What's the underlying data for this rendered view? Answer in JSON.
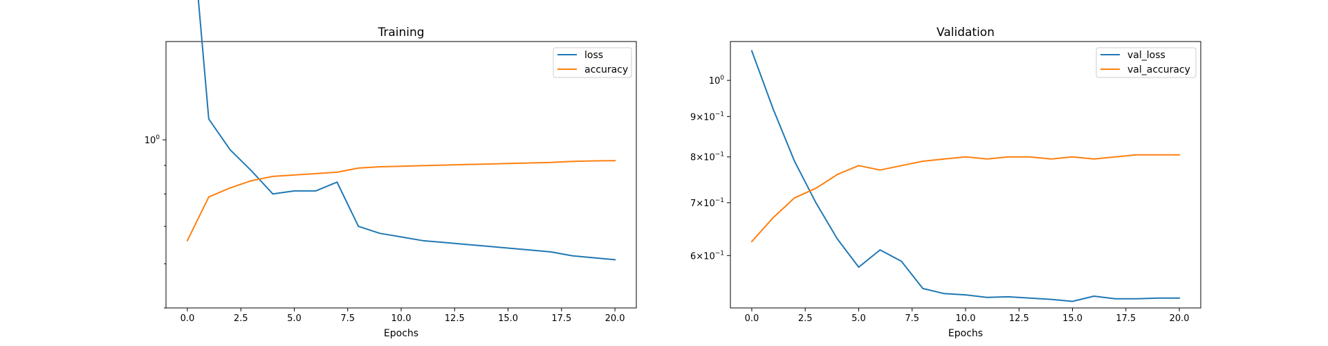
{
  "colors": {
    "series1": "#1f77b4",
    "series2": "#ff7f0e"
  },
  "chart_data": [
    {
      "type": "line",
      "title": "Training",
      "xlabel": "Epochs",
      "ylabel": "",
      "yscale": "log",
      "xlim": [
        -1.0,
        21.0
      ],
      "ylim": [
        0.5,
        1.5
      ],
      "xticks": [
        0.0,
        2.5,
        5.0,
        7.5,
        10.0,
        12.5,
        15.0,
        17.5,
        20.0
      ],
      "xtick_labels": [
        "0.0",
        "2.5",
        "5.0",
        "7.5",
        "10.0",
        "12.5",
        "15.0",
        "17.5",
        "20.0"
      ],
      "yticks_major": [
        {
          "value": 1.0,
          "base": "10",
          "exp": "0"
        }
      ],
      "yticks_minor": [
        0.5,
        0.6,
        0.7,
        0.8,
        0.9,
        2.0,
        3.0,
        4.0
      ],
      "legend_position": "top-right",
      "x": [
        0,
        1,
        2,
        3,
        4,
        5,
        6,
        7,
        8,
        9,
        10,
        11,
        12,
        13,
        14,
        15,
        16,
        17,
        18,
        19,
        20
      ],
      "series": [
        {
          "name": "loss",
          "color": "#1f77b4",
          "values": [
            3.0,
            1.09,
            0.96,
            0.88,
            0.8,
            0.81,
            0.81,
            0.84,
            0.7,
            0.68,
            0.67,
            0.66,
            0.655,
            0.65,
            0.645,
            0.64,
            0.635,
            0.63,
            0.62,
            0.615,
            0.61
          ]
        },
        {
          "name": "accuracy",
          "color": "#ff7f0e",
          "values": [
            0.66,
            0.79,
            0.82,
            0.845,
            0.86,
            0.865,
            0.87,
            0.875,
            0.89,
            0.895,
            0.897,
            0.899,
            0.901,
            0.903,
            0.905,
            0.907,
            0.909,
            0.911,
            0.915,
            0.917,
            0.918
          ]
        }
      ]
    },
    {
      "type": "line",
      "title": "Validation",
      "xlabel": "Epochs",
      "ylabel": "",
      "yscale": "log",
      "xlim": [
        -1.0,
        21.0
      ],
      "ylim": [
        0.515,
        1.12
      ],
      "xticks": [
        0.0,
        2.5,
        5.0,
        7.5,
        10.0,
        12.5,
        15.0,
        17.5,
        20.0
      ],
      "xtick_labels": [
        "0.0",
        "2.5",
        "5.0",
        "7.5",
        "10.0",
        "12.5",
        "15.0",
        "17.5",
        "20.0"
      ],
      "yticks_major": [
        {
          "value": 1.0,
          "base": "10",
          "exp": "0"
        },
        {
          "value": 0.9,
          "prefix": "9",
          "base": "10",
          "exp": "−1"
        },
        {
          "value": 0.8,
          "prefix": "8",
          "base": "10",
          "exp": "−1"
        },
        {
          "value": 0.7,
          "prefix": "7",
          "base": "10",
          "exp": "−1"
        },
        {
          "value": 0.6,
          "prefix": "6",
          "base": "10",
          "exp": "−1"
        }
      ],
      "yticks_minor": [],
      "legend_position": "top-right",
      "x": [
        0,
        1,
        2,
        3,
        4,
        5,
        6,
        7,
        8,
        9,
        10,
        11,
        12,
        13,
        14,
        15,
        16,
        17,
        18,
        19,
        20
      ],
      "series": [
        {
          "name": "val_loss",
          "color": "#1f77b4",
          "values": [
            1.09,
            0.92,
            0.79,
            0.7,
            0.63,
            0.58,
            0.61,
            0.59,
            0.545,
            0.537,
            0.535,
            0.531,
            0.532,
            0.53,
            0.528,
            0.525,
            0.533,
            0.529,
            0.529,
            0.53,
            0.53
          ]
        },
        {
          "name": "val_accuracy",
          "color": "#ff7f0e",
          "values": [
            0.625,
            0.67,
            0.71,
            0.73,
            0.76,
            0.78,
            0.77,
            0.78,
            0.79,
            0.795,
            0.8,
            0.795,
            0.8,
            0.8,
            0.795,
            0.8,
            0.795,
            0.8,
            0.805,
            0.805,
            0.805
          ]
        }
      ]
    }
  ]
}
